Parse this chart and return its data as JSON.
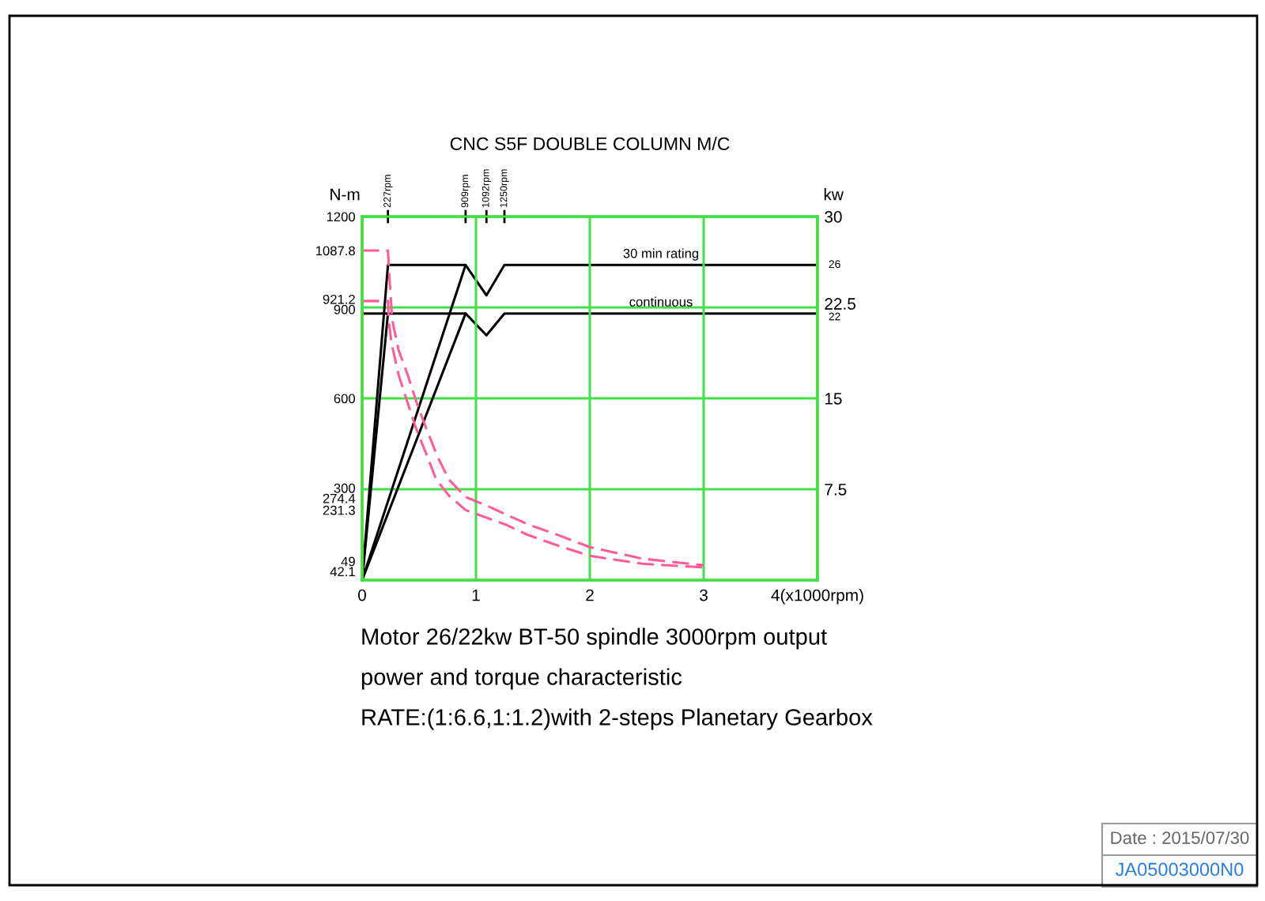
{
  "chart_data": {
    "type": "line",
    "title": "CNC S5F DOUBLE COLUMN M/C",
    "ylabel": "N-m",
    "y2label": "kw",
    "xlim": [
      0,
      4
    ],
    "xticks": [
      0,
      1,
      2,
      3,
      {
        "value": 4,
        "label": "4(x1000rpm)"
      }
    ],
    "x2lim": [
      0,
      4000
    ],
    "x2ticks": [
      {
        "value": 227,
        "label": "227rpm"
      },
      {
        "value": 909,
        "label": "909rpm"
      },
      {
        "value": 1092,
        "label": "1092rpm"
      },
      {
        "value": 1250,
        "label": "1250rpm"
      }
    ],
    "ylim": [
      0,
      1200
    ],
    "yticks": [
      42.1,
      49,
      231.3,
      274.4,
      300,
      600,
      900,
      921.2,
      1087.8,
      1200
    ],
    "y2lim": [
      0,
      30
    ],
    "y2ticks": [
      7.5,
      15,
      22.5,
      30
    ],
    "grid": true,
    "series": [
      {
        "name": "30 min rating",
        "axis": "y2",
        "color": "#000000",
        "x": [
          0,
          0.227,
          0.909,
          1.092,
          1.25,
          4
        ],
        "values": [
          0,
          26,
          26,
          23.5,
          26,
          26
        ],
        "value_labels": [
          null,
          null,
          null,
          null,
          null,
          "26"
        ]
      },
      {
        "axis": "y2",
        "color": "#000000",
        "x": [
          0,
          0.909
        ],
        "values": [
          0,
          26
        ]
      },
      {
        "name": "continuous",
        "axis": "y2",
        "color": "#000000",
        "x": [
          0,
          0.909,
          1.092,
          1.25,
          4
        ],
        "values": [
          22,
          22,
          20.2,
          22,
          22
        ],
        "value_labels": [
          null,
          null,
          null,
          null,
          "22"
        ]
      },
      {
        "axis": "y2",
        "color": "#000000",
        "x": [
          0,
          0.227
        ],
        "values": [
          0,
          22
        ]
      },
      {
        "axis": "y2",
        "color": "#000000",
        "x": [
          0,
          0.909
        ],
        "values": [
          0,
          22
        ]
      },
      {
        "axis": "y",
        "color": "#ff5a9a",
        "line_style": "dashed",
        "x": [
          0,
          0.227,
          0.24,
          0.264,
          0.32,
          0.4,
          0.48,
          0.56,
          0.66,
          0.76,
          0.909,
          1.1,
          1.256,
          1.45,
          1.72,
          2.0,
          2.46,
          3.0
        ],
        "values": [
          1087.8,
          1087.8,
          1000,
          860,
          760,
          678,
          585,
          504,
          410,
          333,
          274.4,
          245,
          218,
          185,
          149,
          109,
          71,
          49
        ]
      },
      {
        "axis": "y",
        "color": "#ff5a9a",
        "line_style": "dashed",
        "x": [
          0,
          0.227,
          0.235,
          0.26,
          0.32,
          0.4,
          0.47,
          0.56,
          0.65,
          0.76,
          0.909,
          1.1,
          1.256,
          1.45,
          1.72,
          2.0,
          2.46,
          3.0
        ],
        "values": [
          921.2,
          921.2,
          850,
          780,
          678,
          585,
          504,
          420,
          333,
          280,
          231.3,
          205,
          184,
          150,
          114,
          80,
          54,
          42.1
        ]
      }
    ],
    "annotations": [
      "Motor 26/22kw BT-50 spindle 3000rpm output",
      "power and torque characteristic",
      "RATE:(1:6.6,1:1.2)with 2-steps Planetary Gearbox",
      "Date : 2015/07/30",
      "JA05003000N0"
    ]
  }
}
